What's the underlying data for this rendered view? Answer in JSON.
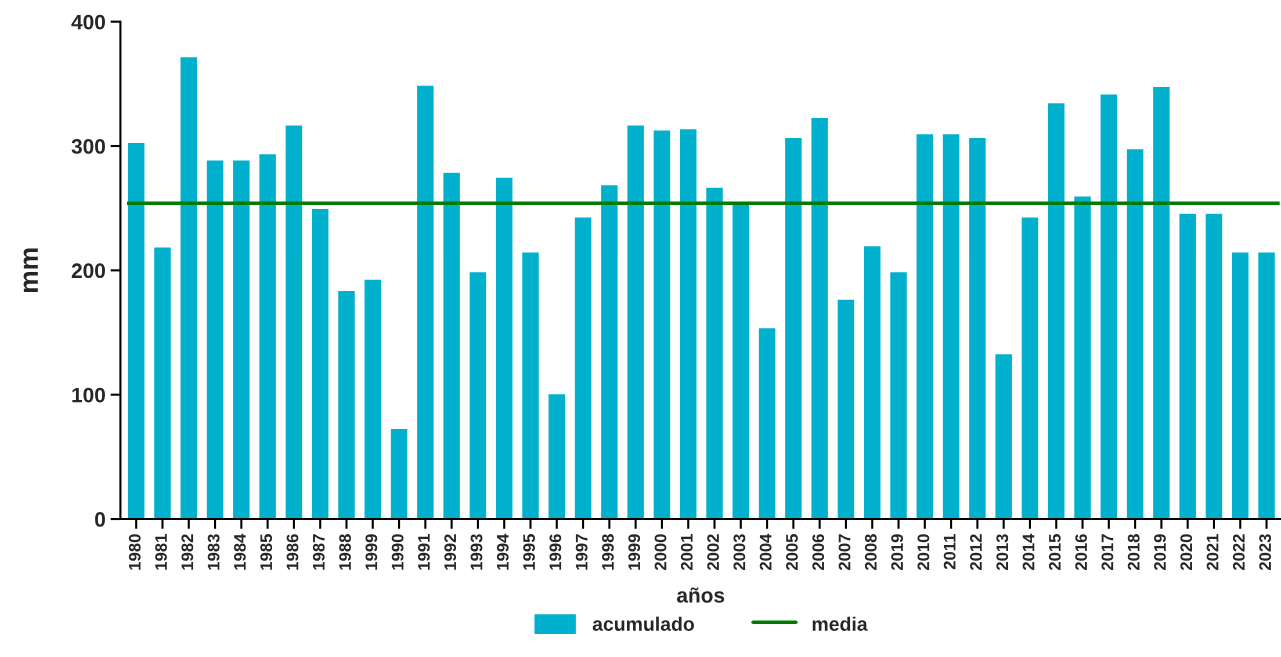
{
  "chart_data": {
    "type": "bar",
    "xlabel": "años",
    "ylabel": "mm",
    "categories": [
      "1980",
      "1981",
      "1982",
      "1983",
      "1984",
      "1985",
      "1986",
      "1987",
      "1988",
      "1999",
      "1990",
      "1991",
      "1992",
      "1993",
      "1994",
      "1995",
      "1996",
      "1997",
      "1998",
      "1999",
      "2000",
      "2001",
      "2002",
      "2003",
      "2004",
      "2005",
      "2006",
      "2007",
      "2008",
      "2019",
      "2010",
      "2011",
      "2012",
      "2013",
      "2014",
      "2015",
      "2016",
      "2017",
      "2018",
      "2019",
      "2020",
      "2021",
      "2022",
      "2023"
    ],
    "series": [
      {
        "name": "acumulado",
        "color": "#00b0cc",
        "values": [
          303,
          219,
          372,
          289,
          289,
          294,
          317,
          250,
          184,
          193,
          73,
          349,
          279,
          199,
          275,
          215,
          101,
          243,
          269,
          317,
          313,
          314,
          267,
          254,
          154,
          307,
          323,
          177,
          220,
          199,
          310,
          310,
          307,
          133,
          243,
          335,
          260,
          342,
          298,
          348,
          246,
          246,
          215,
          215
        ]
      }
    ],
    "ref_lines": [
      {
        "axis": "y",
        "value": 254,
        "label": "media",
        "color": "#007a00",
        "line_style": "solid"
      }
    ],
    "ylim": [
      0,
      400
    ],
    "yticks": [
      0,
      100,
      200,
      300,
      400
    ],
    "grid": false,
    "legend": "bottom"
  }
}
